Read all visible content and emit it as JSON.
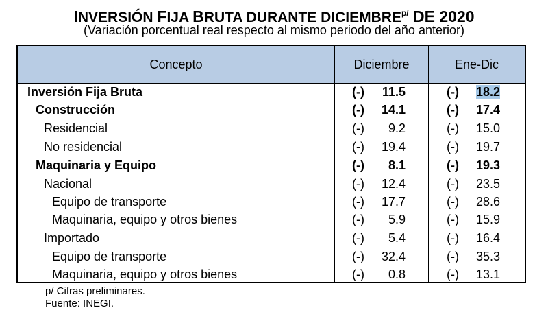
{
  "title": {
    "text_big1": "I",
    "text_small1": "NVERSIÓN ",
    "text_big2": "F",
    "text_small2": "IJA ",
    "text_big3": "B",
    "text_small3": "RUTA DURANTE DICIEMBRE",
    "sup": "p/",
    "tail": " DE 2020"
  },
  "subtitle": "(Variación porcentual real respecto al mismo periodo del año anterior)",
  "table": {
    "headers": [
      "Concepto",
      "Diciembre",
      "Ene-Dic"
    ],
    "rows": [
      {
        "label": "Inversión Fija Bruta",
        "dic_sign": "(-)",
        "dic": "11.5",
        "ene_sign": "(-)",
        "ene": "18.2"
      },
      {
        "label": "Construcción",
        "dic_sign": "(-)",
        "dic": "14.1",
        "ene_sign": "(-)",
        "ene": "17.4"
      },
      {
        "label": "Residencial",
        "dic_sign": "(-)",
        "dic": "9.2",
        "ene_sign": "(-)",
        "ene": "15.0"
      },
      {
        "label": "No residencial",
        "dic_sign": "(-)",
        "dic": "19.4",
        "ene_sign": "(-)",
        "ene": "19.7"
      },
      {
        "label": "Maquinaria y Equipo",
        "dic_sign": "(-)",
        "dic": "8.1",
        "ene_sign": "(-)",
        "ene": "19.3"
      },
      {
        "label": "Nacional",
        "dic_sign": "(-)",
        "dic": "12.4",
        "ene_sign": "(-)",
        "ene": "23.5"
      },
      {
        "label": "Equipo de transporte",
        "dic_sign": "(-)",
        "dic": "17.7",
        "ene_sign": "(-)",
        "ene": "28.6"
      },
      {
        "label": "Maquinaria, equipo y otros bienes",
        "dic_sign": "(-)",
        "dic": "5.9",
        "ene_sign": "(-)",
        "ene": "15.9"
      },
      {
        "label": "Importado",
        "dic_sign": "(-)",
        "dic": "5.4",
        "ene_sign": "(-)",
        "ene": "16.4"
      },
      {
        "label": "Equipo de transporte",
        "dic_sign": "(-)",
        "dic": "32.4",
        "ene_sign": "(-)",
        "ene": "35.3"
      },
      {
        "label": "Maquinaria, equipo y otros bienes",
        "dic_sign": "(-)",
        "dic": "0.8",
        "ene_sign": "(-)",
        "ene": "13.1"
      }
    ]
  },
  "notes": [
    "p/ Cifras preliminares.",
    "Fuente: INEGI."
  ]
}
